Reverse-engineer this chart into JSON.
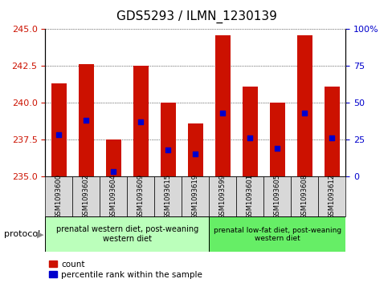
{
  "title": "GDS5293 / ILMN_1230139",
  "samples": [
    "GSM1093600",
    "GSM1093602",
    "GSM1093604",
    "GSM1093609",
    "GSM1093615",
    "GSM1093619",
    "GSM1093599",
    "GSM1093601",
    "GSM1093605",
    "GSM1093608",
    "GSM1093612"
  ],
  "bar_tops": [
    241.3,
    242.6,
    237.5,
    242.5,
    240.0,
    238.6,
    244.6,
    241.1,
    240.0,
    244.6,
    241.1
  ],
  "bar_base": 235.0,
  "blue_dot_values": [
    237.8,
    238.8,
    235.3,
    238.7,
    236.8,
    236.5,
    239.3,
    237.6,
    236.9,
    239.3,
    237.6
  ],
  "ylim_left": [
    235.0,
    245.0
  ],
  "ylim_right": [
    0,
    100
  ],
  "yticks_left": [
    235,
    237.5,
    240,
    242.5,
    245
  ],
  "yticks_right": [
    0,
    25,
    50,
    75,
    100
  ],
  "bar_color": "#cc1100",
  "dot_color": "#0000cc",
  "group1_indices": [
    0,
    1,
    2,
    3,
    4,
    5
  ],
  "group2_indices": [
    6,
    7,
    8,
    9,
    10
  ],
  "group1_label": "prenatal western diet, post-weaning\nwestern diet",
  "group2_label": "prenatal low-fat diet, post-weaning\nwestern diet",
  "group1_color": "#bbffbb",
  "group2_color": "#66ee66",
  "protocol_label": "protocol",
  "legend_count_label": "count",
  "legend_percentile_label": "percentile rank within the sample",
  "xlabel_color": "#cc1100",
  "ylabel_right_color": "#0000cc",
  "title_fontsize": 11,
  "tick_fontsize": 8,
  "bar_width": 0.55
}
